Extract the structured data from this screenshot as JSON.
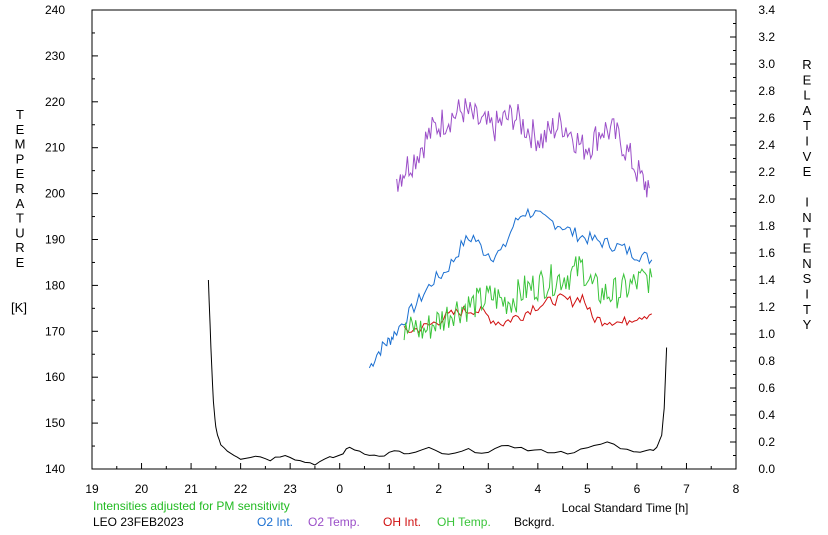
{
  "chart_data": {
    "type": "line",
    "title": "",
    "left_axis": {
      "label": "TEMPERATURE",
      "unit": "[K]",
      "range": [
        140,
        240
      ],
      "ticks": [
        140,
        150,
        160,
        170,
        180,
        190,
        200,
        210,
        220,
        230,
        240
      ]
    },
    "right_axis": {
      "label": "RELATIVE INTENSITY",
      "range": [
        0,
        3.4
      ],
      "ticks": [
        "0.0",
        "0.2",
        "0.4",
        "0.6",
        "0.8",
        "1.0",
        "1.2",
        "1.4",
        "1.6",
        "1.8",
        "2.0",
        "2.2",
        "2.4",
        "2.6",
        "2.8",
        "3.0",
        "3.2",
        "3.4"
      ]
    },
    "x_axis": {
      "label": "Local Standard Time [h]",
      "range": [
        19,
        32
      ],
      "tick_labels": [
        "19",
        "20",
        "21",
        "22",
        "23",
        "0",
        "1",
        "2",
        "3",
        "4",
        "5",
        "6",
        "7",
        "8"
      ]
    },
    "note": "Intensities adjusted for PM sensitivity",
    "station": "LEO 23FEB2023",
    "colors": {
      "o2_int": "#1a6fd1",
      "o2_temp": "#9b4fc8",
      "oh_int": "#d01010",
      "oh_temp": "#3ac43a",
      "background": "#000000",
      "note": "#22bb22"
    },
    "legend": [
      "O2 Int.",
      "O2 Temp.",
      "OH Int.",
      "OH Temp.",
      "Bckgrd."
    ],
    "series": [
      {
        "name": "O2 Int.",
        "axis": "right",
        "x": [
          24.6,
          24.75,
          24.9,
          25.0,
          25.1,
          25.3,
          25.5,
          25.7,
          25.9,
          26.1,
          26.3,
          26.5,
          26.7,
          26.9,
          27.1,
          27.3,
          27.5,
          27.7,
          27.9,
          28.1,
          28.3,
          28.5,
          28.7,
          28.9,
          29.1,
          29.3,
          29.5,
          29.7,
          29.9,
          30.1,
          30.3
        ],
        "y": [
          0.75,
          0.85,
          0.92,
          0.95,
          1.0,
          1.1,
          1.2,
          1.3,
          1.4,
          1.45,
          1.55,
          1.68,
          1.72,
          1.62,
          1.58,
          1.62,
          1.8,
          1.9,
          1.9,
          1.85,
          1.83,
          1.8,
          1.75,
          1.72,
          1.7,
          1.68,
          1.66,
          1.64,
          1.6,
          1.58,
          1.55
        ]
      },
      {
        "name": "O2 Temp.",
        "axis": "right",
        "x": [
          25.15,
          25.3,
          25.5,
          25.7,
          25.9,
          26.1,
          26.3,
          26.5,
          26.7,
          26.9,
          27.1,
          27.3,
          27.5,
          27.7,
          27.9,
          28.1,
          28.3,
          28.5,
          28.7,
          28.9,
          29.1,
          29.3,
          29.5,
          29.7,
          29.9,
          30.1,
          30.25
        ],
        "y": [
          2.15,
          2.22,
          2.3,
          2.42,
          2.52,
          2.58,
          2.62,
          2.66,
          2.6,
          2.55,
          2.52,
          2.58,
          2.62,
          2.55,
          2.48,
          2.44,
          2.52,
          2.56,
          2.48,
          2.38,
          2.42,
          2.52,
          2.5,
          2.42,
          2.28,
          2.14,
          2.08
        ]
      },
      {
        "name": "OH Int.",
        "axis": "right",
        "x": [
          25.3,
          25.5,
          25.7,
          25.9,
          26.1,
          26.3,
          26.5,
          26.7,
          26.9,
          27.1,
          27.3,
          27.5,
          27.7,
          27.9,
          28.1,
          28.3,
          28.5,
          28.7,
          28.9,
          29.1,
          29.3,
          29.5,
          29.7,
          29.9,
          30.1,
          30.3
        ],
        "y": [
          1.02,
          1.03,
          1.05,
          1.08,
          1.12,
          1.15,
          1.17,
          1.18,
          1.16,
          1.1,
          1.08,
          1.12,
          1.14,
          1.2,
          1.22,
          1.25,
          1.26,
          1.24,
          1.28,
          1.12,
          1.1,
          1.1,
          1.08,
          1.12,
          1.14,
          1.15
        ]
      },
      {
        "name": "OH Temp.",
        "axis": "right",
        "x": [
          25.3,
          25.5,
          25.7,
          25.9,
          26.1,
          26.3,
          26.5,
          26.7,
          26.9,
          27.1,
          27.3,
          27.5,
          27.7,
          27.9,
          28.1,
          28.3,
          28.5,
          28.7,
          28.9,
          29.1,
          29.3,
          29.5,
          29.7,
          29.9,
          30.1,
          30.3
        ],
        "y": [
          1.0,
          1.05,
          1.02,
          1.08,
          1.12,
          1.18,
          1.2,
          1.22,
          1.25,
          1.28,
          1.24,
          1.26,
          1.32,
          1.35,
          1.38,
          1.4,
          1.42,
          1.45,
          1.5,
          1.35,
          1.3,
          1.3,
          1.32,
          1.36,
          1.4,
          1.42
        ]
      },
      {
        "name": "Bckgrd.",
        "axis": "right",
        "x": [
          21.35,
          21.4,
          21.45,
          21.5,
          21.6,
          21.8,
          22.0,
          22.3,
          22.6,
          22.9,
          23.2,
          23.5,
          23.8,
          24.0,
          24.2,
          24.5,
          24.8,
          25.1,
          25.4,
          25.8,
          26.2,
          26.6,
          27.0,
          27.4,
          27.8,
          28.2,
          28.6,
          29.0,
          29.4,
          29.8,
          30.2,
          30.4,
          30.5,
          30.55,
          30.6
        ],
        "y": [
          1.4,
          0.9,
          0.5,
          0.3,
          0.18,
          0.12,
          0.08,
          0.1,
          0.07,
          0.11,
          0.06,
          0.04,
          0.08,
          0.1,
          0.16,
          0.12,
          0.09,
          0.13,
          0.11,
          0.15,
          0.1,
          0.14,
          0.12,
          0.18,
          0.14,
          0.13,
          0.12,
          0.15,
          0.2,
          0.14,
          0.13,
          0.16,
          0.25,
          0.45,
          0.9
        ]
      }
    ]
  }
}
